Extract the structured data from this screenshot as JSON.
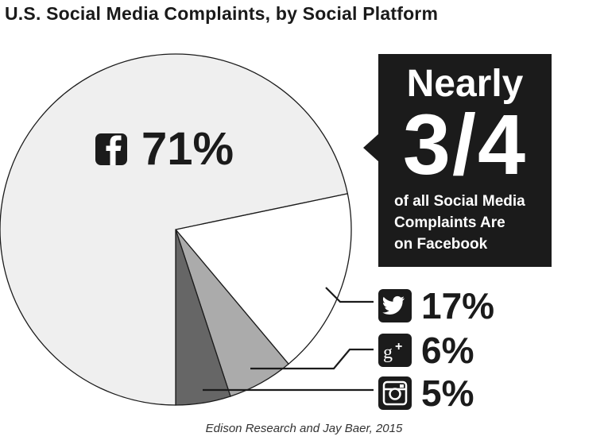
{
  "title": "U.S. Social Media Complaints, by Social Platform",
  "callout": {
    "line1": "Nearly",
    "fraction": "3/4",
    "body_lines": [
      "of all Social Media",
      "Complaints Are",
      "on Facebook"
    ]
  },
  "source": "Edison Research and Jay Baer, 2015",
  "colors": {
    "facebook": "#efefef",
    "twitter": "#ffffff",
    "googleplus": "#ababab",
    "instagram": "#666666",
    "callout": "#1b1b1b",
    "icon": "#1b1b1b"
  },
  "chart_data": {
    "type": "pie",
    "title": "U.S. Social Media Complaints, by Social Platform",
    "slices": [
      {
        "name": "Facebook",
        "value": 71,
        "label": "71%",
        "icon": "facebook-icon"
      },
      {
        "name": "Twitter",
        "value": 17,
        "label": "17%",
        "icon": "twitter-icon"
      },
      {
        "name": "Google+",
        "value": 6,
        "label": "6%",
        "icon": "google-plus-icon"
      },
      {
        "name": "Instagram",
        "value": 5,
        "label": "5%",
        "icon": "instagram-icon"
      }
    ]
  }
}
